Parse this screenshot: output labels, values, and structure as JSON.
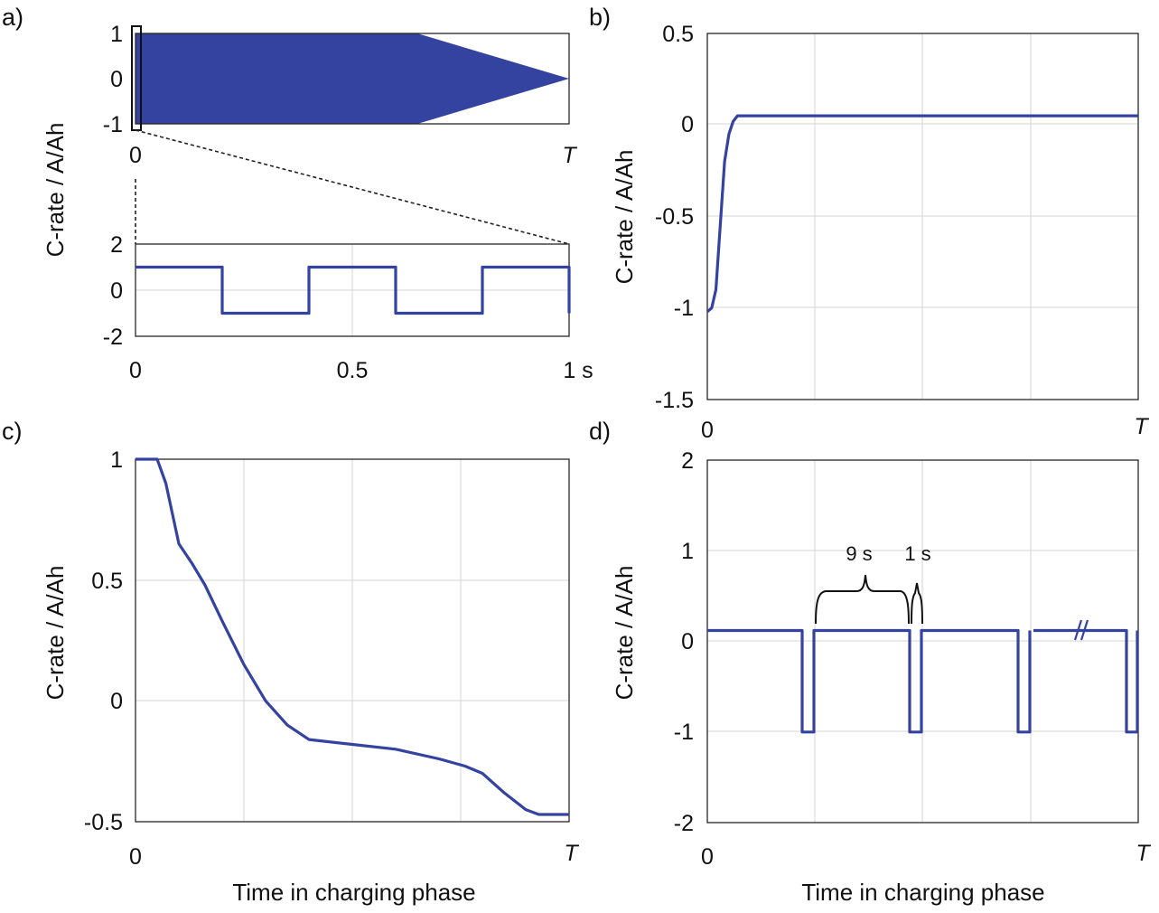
{
  "colors": {
    "series": "#3443a0",
    "axis": "#262626",
    "grid": "#d6d6d6"
  },
  "x_axis_label": "Time in charging phase",
  "chart_data": [
    {
      "panel": "a)",
      "type": "area",
      "subplot": "overview",
      "ylabel": "C-rate / A/Ah",
      "ylim": [
        -1,
        1
      ],
      "yticks": [
        "1",
        "0",
        "-1"
      ],
      "xticks": [
        "0",
        "T"
      ],
      "x": [
        0,
        0.62,
        0.65,
        1.0
      ],
      "upper": [
        1,
        1,
        1,
        0
      ],
      "lower": [
        -1,
        -1,
        -1,
        0
      ],
      "grid": true
    },
    {
      "panel": "a)",
      "type": "line",
      "subplot": "zoom",
      "xlim": [
        0,
        1
      ],
      "ylim": [
        -2,
        2
      ],
      "yticks": [
        "2",
        "0",
        "-2"
      ],
      "xticks": [
        "0",
        "0.5",
        "1 s"
      ],
      "x": [
        0,
        0.2,
        0.2,
        0.4,
        0.4,
        0.6,
        0.6,
        0.8,
        0.8,
        1.0,
        1.0
      ],
      "y": [
        1,
        1,
        -1,
        -1,
        1,
        1,
        -1,
        -1,
        1,
        1,
        -1
      ],
      "grid": true
    },
    {
      "panel": "b)",
      "type": "line",
      "ylabel": "C-rate / A/Ah",
      "ylim": [
        -1.5,
        0.5
      ],
      "yticks": [
        "0.5",
        "0",
        "-0.5",
        "-1",
        "-1.5"
      ],
      "xticks": [
        "0",
        "T"
      ],
      "x": [
        0,
        0.01,
        0.02,
        0.03,
        0.04,
        0.05,
        0.06,
        0.07,
        0.08,
        1.0
      ],
      "y": [
        -1.02,
        -1.0,
        -0.9,
        -0.55,
        -0.2,
        -0.05,
        0.02,
        0.05,
        0.05,
        0.05
      ],
      "grid": true
    },
    {
      "panel": "c)",
      "type": "line",
      "ylabel": "C-rate / A/Ah",
      "ylim": [
        -0.5,
        1
      ],
      "yticks": [
        "1",
        "0.5",
        "0",
        "-0.5"
      ],
      "xticks": [
        "0",
        "T"
      ],
      "x": [
        0,
        0.05,
        0.07,
        0.1,
        0.13,
        0.16,
        0.2,
        0.25,
        0.3,
        0.35,
        0.4,
        0.5,
        0.6,
        0.7,
        0.76,
        0.8,
        0.85,
        0.9,
        0.93,
        1.0
      ],
      "y": [
        1,
        1,
        0.9,
        0.65,
        0.57,
        0.48,
        0.33,
        0.15,
        0.0,
        -0.1,
        -0.16,
        -0.18,
        -0.2,
        -0.24,
        -0.27,
        -0.3,
        -0.38,
        -0.45,
        -0.47,
        -0.47
      ],
      "grid": true
    },
    {
      "panel": "d)",
      "type": "line",
      "ylabel": "C-rate / A/Ah",
      "ylim": [
        -2,
        2
      ],
      "yticks": [
        "2",
        "1",
        "0",
        "-1",
        "-2"
      ],
      "xticks": [
        "0",
        "T"
      ],
      "pulse_high": 0.12,
      "pulse_low": -1.0,
      "period_s": 10,
      "pulse_width_s": 1,
      "annotations": [
        "9 s",
        "1 s"
      ],
      "grid": true
    }
  ]
}
